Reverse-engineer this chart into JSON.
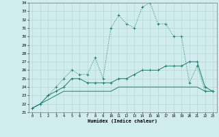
{
  "x_values": [
    0,
    1,
    2,
    3,
    4,
    5,
    6,
    7,
    8,
    9,
    10,
    11,
    12,
    13,
    14,
    15,
    16,
    17,
    18,
    19,
    20,
    21,
    22,
    23
  ],
  "line1_y": [
    21.5,
    22,
    23,
    24,
    25,
    26,
    25.5,
    25.5,
    27.5,
    25,
    31,
    32.5,
    31.5,
    31,
    33.5,
    34,
    31.5,
    31.5,
    30,
    30,
    24.5,
    26.5,
    23.5,
    23.5
  ],
  "line2_y": [
    21.5,
    22,
    23,
    23.5,
    24,
    25,
    25,
    24.5,
    24.5,
    24.5,
    24.5,
    25,
    25,
    25.5,
    26,
    26,
    26,
    26.5,
    26.5,
    26.5,
    27,
    27,
    24,
    23.5
  ],
  "line3_y": [
    21.5,
    22,
    22.5,
    23,
    23.5,
    23.5,
    23.5,
    23.5,
    23.5,
    23.5,
    23.5,
    24,
    24,
    24,
    24,
    24,
    24,
    24,
    24,
    24,
    24,
    24,
    23.5,
    23.5
  ],
  "line_color": "#1a7d6e",
  "bg_color": "#d0ecec",
  "grid_color": "#aed4d4",
  "xlabel": "Humidex (Indice chaleur)",
  "ylim": [
    21,
    34
  ],
  "xlim": [
    -0.5,
    23.5
  ],
  "yticks": [
    21,
    22,
    23,
    24,
    25,
    26,
    27,
    28,
    29,
    30,
    31,
    32,
    33,
    34
  ],
  "xticks": [
    0,
    1,
    2,
    3,
    4,
    5,
    6,
    7,
    8,
    9,
    10,
    11,
    12,
    13,
    14,
    15,
    16,
    17,
    18,
    19,
    20,
    21,
    22,
    23
  ]
}
